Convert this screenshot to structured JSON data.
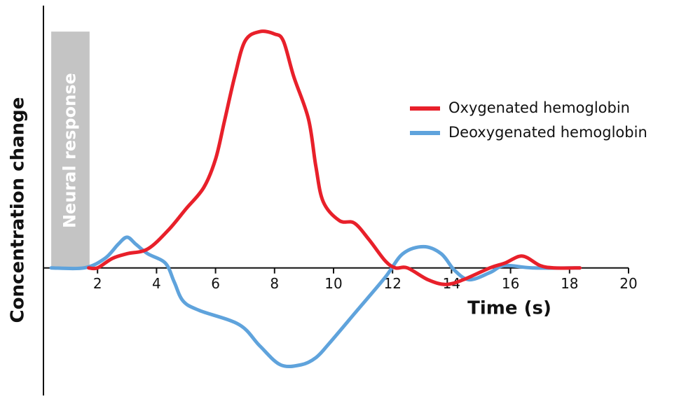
{
  "chart_data": {
    "type": "line",
    "x_label": "Time (s)",
    "y_label": "Concentration change",
    "xlim": [
      0,
      20
    ],
    "ylim": [
      -0.54,
      1.11
    ],
    "xticks": [
      2,
      4,
      6,
      8,
      10,
      12,
      14,
      16,
      18,
      20
    ],
    "neural_response": {
      "label": "Neural response",
      "start": 0.43,
      "end": 1.73,
      "height": 1.0,
      "color": "#c4c4c4"
    },
    "series": [
      {
        "name": "Oxygenated hemoglobin",
        "color": "#e8202a",
        "x": [
          1.7,
          2,
          2.5,
          3,
          3.7,
          4.4,
          5,
          5.6,
          6,
          6.3,
          6.65,
          7,
          7.5,
          8,
          8.3,
          8.65,
          9.15,
          9.4,
          9.65,
          10.2,
          10.7,
          11.2,
          11.75,
          12.1,
          12.5,
          13.2,
          13.8,
          14.4,
          15.3,
          15.8,
          16.4,
          17,
          17.5,
          18.35
        ],
        "values": [
          0,
          0,
          0.04,
          0.06,
          0.08,
          0.16,
          0.25,
          0.34,
          0.46,
          0.62,
          0.81,
          0.96,
          1.0,
          0.99,
          0.96,
          0.81,
          0.63,
          0.43,
          0.28,
          0.2,
          0.19,
          0.12,
          0.03,
          0,
          0,
          -0.05,
          -0.07,
          -0.05,
          0,
          0.02,
          0.05,
          0.01,
          0,
          0
        ]
      },
      {
        "name": "Deoxygenated hemoglobin",
        "color": "#5fa3dc",
        "x": [
          0.43,
          1.55,
          2.25,
          2.7,
          3.0,
          3.3,
          3.7,
          4.3,
          4.6,
          4.9,
          5.45,
          6.8,
          7.5,
          8.2,
          8.9,
          9.4,
          9.85,
          10.8,
          11.75,
          12.35,
          13.05,
          13.65,
          14.1,
          14.6,
          15.3,
          15.8,
          16.75,
          18.35
        ],
        "values": [
          0,
          0,
          0.04,
          0.1,
          0.13,
          0.1,
          0.06,
          0.02,
          -0.06,
          -0.14,
          -0.18,
          -0.24,
          -0.33,
          -0.41,
          -0.41,
          -0.38,
          -0.32,
          -0.18,
          -0.04,
          0.06,
          0.09,
          0.06,
          -0.01,
          -0.05,
          -0.02,
          0.01,
          0,
          0
        ]
      }
    ]
  }
}
